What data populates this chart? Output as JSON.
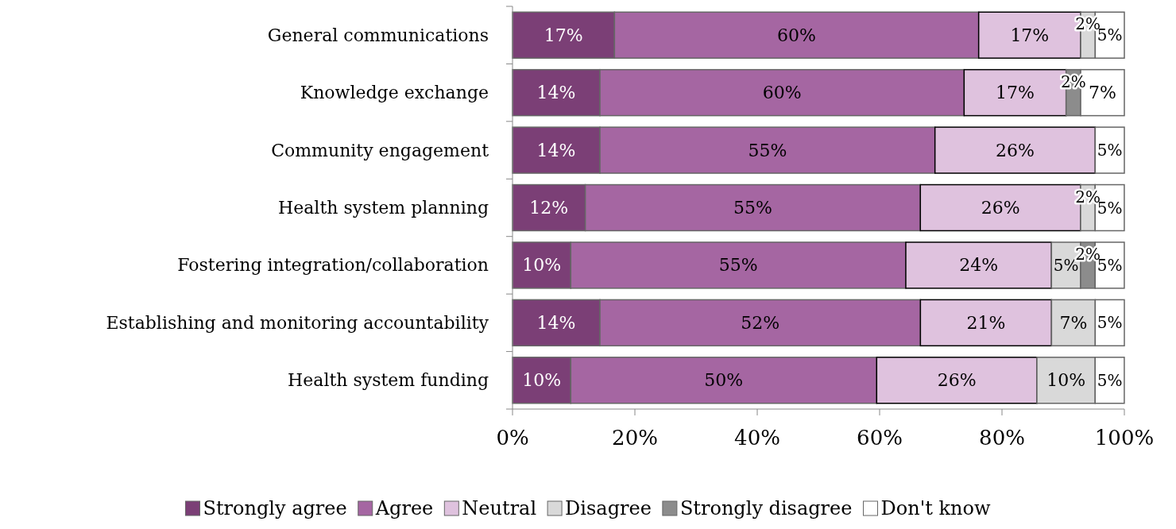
{
  "chart_data": {
    "type": "bar",
    "orientation": "horizontal",
    "stacked": true,
    "categories": [
      "General communications",
      "Knowledge exchange",
      "Community engagement",
      "Health system planning",
      "Fostering integration/collaboration",
      "Establishing and monitoring accountability",
      "Health system funding"
    ],
    "series": [
      {
        "name": "Strongly agree",
        "color": "#7b3f76",
        "values": [
          16.67,
          14.29,
          14.29,
          11.9,
          9.52,
          14.29,
          9.52
        ],
        "value_labels": [
          "17%",
          "14%",
          "14%",
          "12%",
          "10%",
          "14%",
          "10%"
        ]
      },
      {
        "name": "Agree",
        "color": "#a566a2",
        "values": [
          59.52,
          59.52,
          54.76,
          54.76,
          54.76,
          52.38,
          50
        ],
        "value_labels": [
          "60%",
          "60%",
          "55%",
          "55%",
          "55%",
          "52%",
          "50%"
        ]
      },
      {
        "name": "Neutral",
        "color": "#dfc2de",
        "values": [
          16.67,
          16.67,
          26.19,
          26.19,
          23.81,
          21.43,
          26.19
        ],
        "value_labels": [
          "17%",
          "17%",
          "26%",
          "26%",
          "24%",
          "21%",
          "26%"
        ]
      },
      {
        "name": "Disagree",
        "color": "#d9d9d9",
        "values": [
          2.38,
          null,
          null,
          2.38,
          4.76,
          7.14,
          9.52
        ],
        "value_labels": [
          "2%",
          null,
          null,
          "2%",
          "5%",
          "7%",
          "10%"
        ]
      },
      {
        "name": "Strongly disagree",
        "color": "#8c8c8c",
        "values": [
          null,
          2.38,
          null,
          null,
          2.38,
          null,
          null
        ],
        "value_labels": [
          null,
          "2%",
          null,
          null,
          "2%",
          null,
          null
        ]
      },
      {
        "name": "Don't know",
        "color": "#ffffff",
        "values": [
          4.76,
          7.14,
          4.76,
          4.76,
          4.76,
          4.76,
          4.76
        ],
        "value_labels": [
          "5%",
          "7%",
          "5%",
          "5%",
          "5%",
          "5%",
          "5%"
        ]
      }
    ],
    "xlim": [
      0,
      100
    ],
    "xticks": [
      {
        "value": 0,
        "label": "0%"
      },
      {
        "value": 20,
        "label": "20%"
      },
      {
        "value": 40,
        "label": "40%"
      },
      {
        "value": 60,
        "label": "60%"
      },
      {
        "value": 80,
        "label": "80%"
      },
      {
        "value": 100,
        "label": "100%"
      }
    ],
    "legend": "bottom",
    "grid": false
  }
}
